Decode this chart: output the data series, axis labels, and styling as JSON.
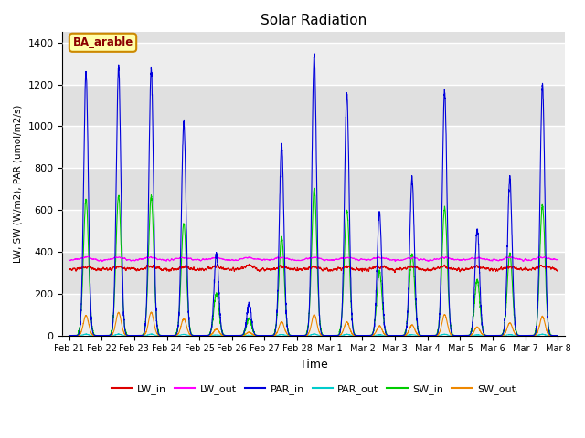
{
  "title": "Solar Radiation",
  "xlabel": "Time",
  "ylabel": "LW, SW (W/m2), PAR (umol/m2/s)",
  "ylim": [
    0,
    1450
  ],
  "annotation": "BA_arable",
  "background_color": "#e0e0e0",
  "stripe_color": "#cccccc",
  "line_colors": {
    "LW_in": "#dd0000",
    "LW_out": "#ff00ff",
    "PAR_in": "#0000dd",
    "PAR_out": "#00cccc",
    "SW_in": "#00cc00",
    "SW_out": "#ee8800"
  },
  "x_tick_labels": [
    "Feb 21",
    "Feb 22",
    "Feb 23",
    "Feb 24",
    "Feb 25",
    "Feb 26",
    "Feb 27",
    "Feb 28",
    "Mar 1",
    "Mar 2",
    "Mar 3",
    "Mar 4",
    "Mar 5",
    "Mar 6",
    "Mar 7",
    "Mar 8"
  ],
  "day_peak_PAR_in": [
    1260,
    1280,
    1270,
    1020,
    390,
    150,
    910,
    1340,
    1160,
    590,
    750,
    1165,
    510,
    750,
    1200
  ],
  "day_peak_SW_in": [
    650,
    670,
    665,
    535,
    200,
    80,
    470,
    700,
    600,
    305,
    390,
    610,
    265,
    390,
    620
  ],
  "day_peak_SW_out": [
    95,
    110,
    110,
    80,
    30,
    15,
    65,
    100,
    65,
    45,
    50,
    100,
    40,
    60,
    90
  ],
  "LW_in_base": 315,
  "LW_out_base": 360,
  "figsize": [
    6.4,
    4.8
  ],
  "dpi": 100
}
